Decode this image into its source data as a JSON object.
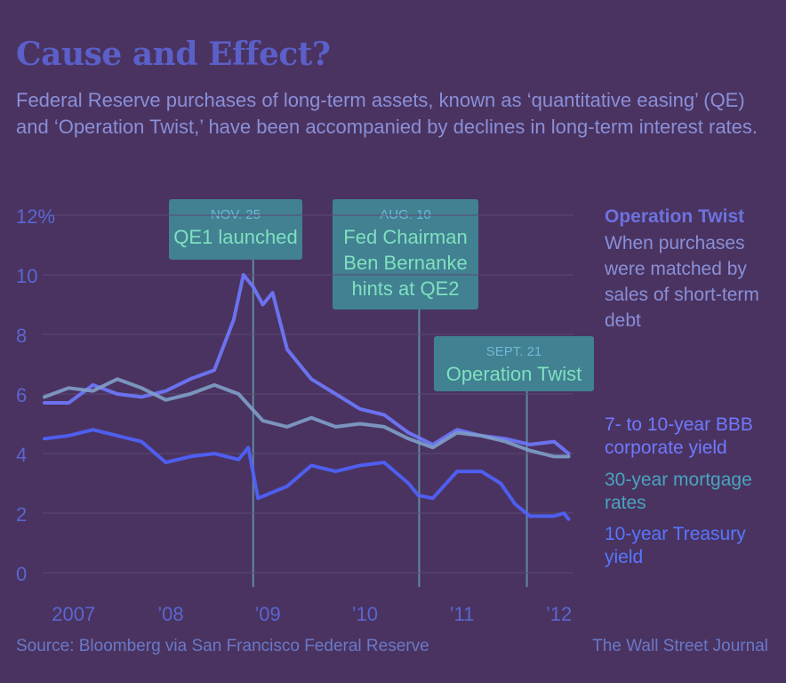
{
  "title": "Cause and Effect?",
  "subtitle": "Federal Reserve purchases of long-term assets, known as ‘quantitative easing’ (QE) and ‘Operation Twist,’ have been accompanied by declines in long-term interest rates.",
  "legend": {
    "twist_title": "Operation Twist",
    "twist_desc": "When purchases were matched by sales of short-term debt",
    "bbb": "7- to 10-year BBB corporate yield",
    "mortgage": "30-year mortgage rates",
    "treasury": "10-year Treasury yield"
  },
  "footer": {
    "source": "Source: Bloomberg via San Francisco Federal Reserve",
    "credit": "The Wall Street Journal"
  },
  "colors": {
    "bbb": "#6f79ff",
    "mortgage": "#7f9fc8",
    "treasury": "#4f63ff",
    "annotation_bg": "#3f8f9a",
    "annotation_text": "#7fe0c0",
    "axis_text": "#5a66d0"
  },
  "chart_data": {
    "type": "line",
    "y_tick_labels": [
      "12%",
      "10",
      "8",
      "6",
      "4",
      "2",
      "0"
    ],
    "y_ticks": [
      12,
      10,
      8,
      6,
      4,
      2,
      0
    ],
    "ylim": [
      0,
      12
    ],
    "x_tick_labels": [
      "2007",
      "’08",
      "’09",
      "’10",
      "’11",
      "’12"
    ],
    "x_ticks": [
      2007,
      2008,
      2009,
      2010,
      2011,
      2012
    ],
    "xlim": [
      2006.75,
      2012.2
    ],
    "annotations": [
      {
        "date": "NOV. 25",
        "text": "QE1 launched",
        "x": 2008.9
      },
      {
        "date": "AUG. 10",
        "text": "Fed Chairman Ben Bernanke hints at QE2",
        "x": 2010.61
      },
      {
        "date": "SEPT. 21",
        "text": "Operation Twist",
        "x": 2011.72
      }
    ],
    "series": [
      {
        "name": "7- to 10-year BBB corporate yield",
        "key": "bbb",
        "x": [
          2006.75,
          2007.0,
          2007.25,
          2007.5,
          2007.75,
          2008.0,
          2008.25,
          2008.5,
          2008.7,
          2008.8,
          2008.9,
          2009.0,
          2009.1,
          2009.25,
          2009.5,
          2009.75,
          2010.0,
          2010.25,
          2010.5,
          2010.75,
          2011.0,
          2011.25,
          2011.5,
          2011.75,
          2012.0,
          2012.15
        ],
        "values": [
          5.7,
          5.7,
          6.3,
          6.0,
          5.9,
          6.1,
          6.5,
          6.8,
          8.5,
          10.0,
          9.6,
          9.0,
          9.4,
          7.5,
          6.5,
          6.0,
          5.5,
          5.3,
          4.7,
          4.3,
          4.8,
          4.6,
          4.5,
          4.3,
          4.4,
          4.0
        ]
      },
      {
        "name": "30-year mortgage rates",
        "key": "mortgage",
        "x": [
          2006.75,
          2007.0,
          2007.25,
          2007.5,
          2007.75,
          2008.0,
          2008.25,
          2008.5,
          2008.75,
          2009.0,
          2009.25,
          2009.5,
          2009.75,
          2010.0,
          2010.25,
          2010.5,
          2010.75,
          2011.0,
          2011.25,
          2011.5,
          2011.75,
          2012.0,
          2012.15
        ],
        "values": [
          5.9,
          6.2,
          6.1,
          6.5,
          6.2,
          5.8,
          6.0,
          6.3,
          6.0,
          5.1,
          4.9,
          5.2,
          4.9,
          5.0,
          4.9,
          4.5,
          4.2,
          4.7,
          4.6,
          4.4,
          4.1,
          3.9,
          3.9
        ]
      },
      {
        "name": "10-year Treasury yield",
        "key": "treasury",
        "x": [
          2006.75,
          2007.0,
          2007.25,
          2007.5,
          2007.75,
          2008.0,
          2008.25,
          2008.5,
          2008.75,
          2008.85,
          2008.95,
          2009.1,
          2009.25,
          2009.5,
          2009.75,
          2010.0,
          2010.25,
          2010.5,
          2010.6,
          2010.75,
          2011.0,
          2011.25,
          2011.45,
          2011.6,
          2011.75,
          2012.0,
          2012.1,
          2012.15
        ],
        "values": [
          4.5,
          4.6,
          4.8,
          4.6,
          4.4,
          3.7,
          3.9,
          4.0,
          3.8,
          4.2,
          2.5,
          2.7,
          2.9,
          3.6,
          3.4,
          3.6,
          3.7,
          3.0,
          2.6,
          2.5,
          3.4,
          3.4,
          3.0,
          2.3,
          1.9,
          1.9,
          2.0,
          1.8
        ]
      }
    ]
  }
}
